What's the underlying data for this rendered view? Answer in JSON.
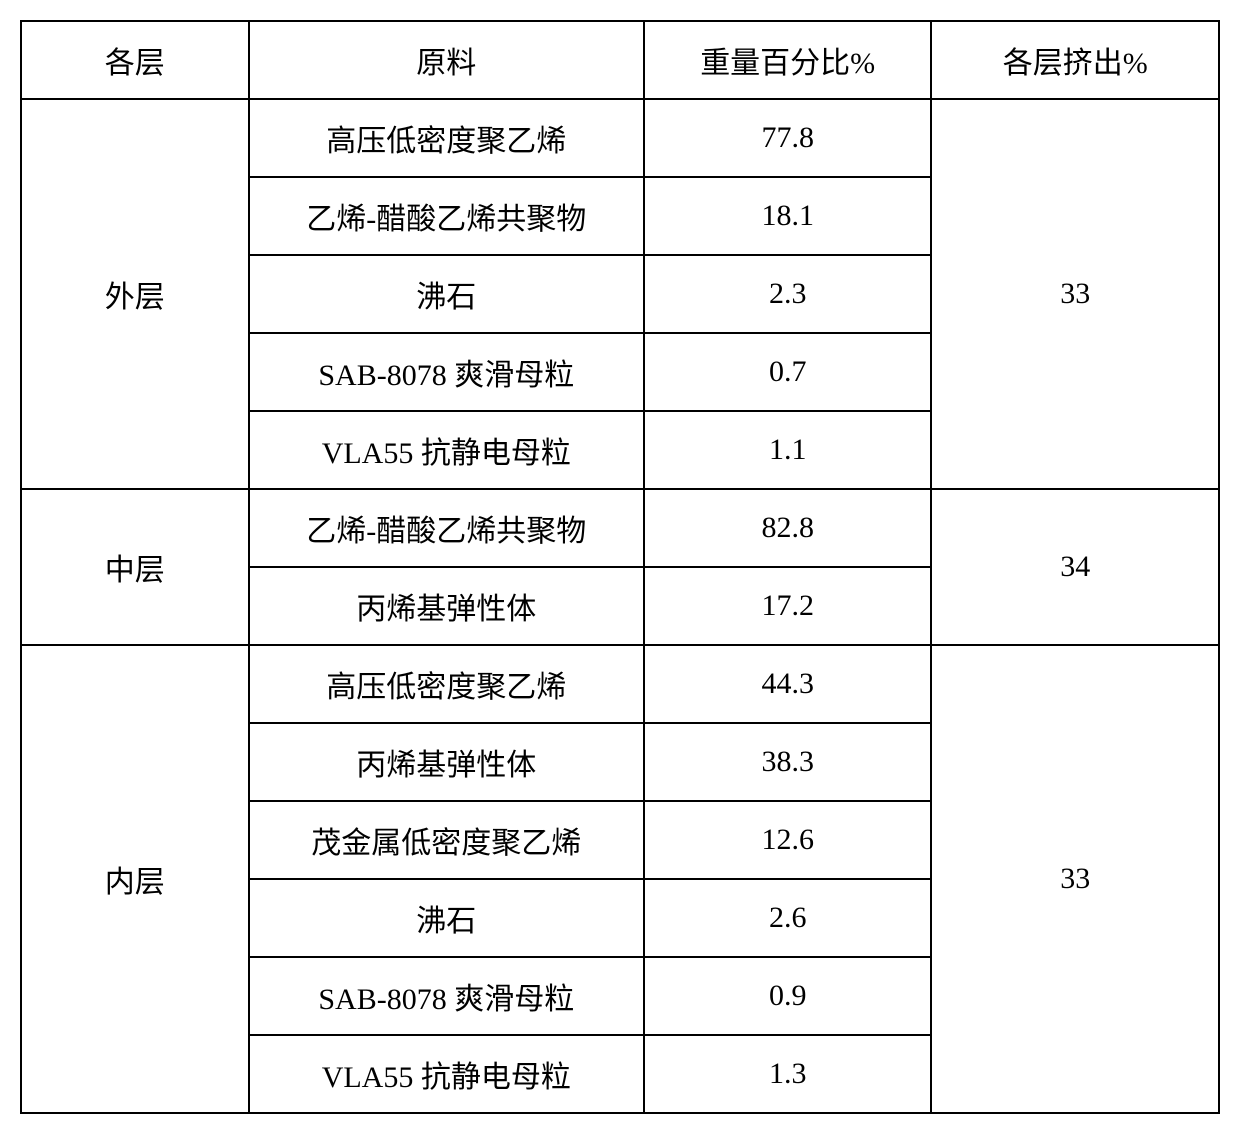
{
  "table": {
    "headers": {
      "layer": "各层",
      "material": "原料",
      "weight_pct": "重量百分比%",
      "extrude_pct": "各层挤出%"
    },
    "groups": [
      {
        "layer": "外层",
        "extrude": "33",
        "rows": [
          {
            "material": "高压低密度聚乙烯",
            "weight": "77.8"
          },
          {
            "material": "乙烯-醋酸乙烯共聚物",
            "weight": "18.1"
          },
          {
            "material": "沸石",
            "weight": "2.3"
          },
          {
            "material": "SAB-8078 爽滑母粒",
            "weight": "0.7"
          },
          {
            "material": "VLA55 抗静电母粒",
            "weight": "1.1"
          }
        ]
      },
      {
        "layer": "中层",
        "extrude": "34",
        "rows": [
          {
            "material": "乙烯-醋酸乙烯共聚物",
            "weight": "82.8"
          },
          {
            "material": "丙烯基弹性体",
            "weight": "17.2"
          }
        ]
      },
      {
        "layer": "内层",
        "extrude": "33",
        "rows": [
          {
            "material": "高压低密度聚乙烯",
            "weight": "44.3"
          },
          {
            "material": "丙烯基弹性体",
            "weight": "38.3"
          },
          {
            "material": "茂金属低密度聚乙烯",
            "weight": "12.6"
          },
          {
            "material": "沸石",
            "weight": "2.6"
          },
          {
            "material": "SAB-8078 爽滑母粒",
            "weight": "0.9"
          },
          {
            "material": "VLA55 抗静电母粒",
            "weight": "1.3"
          }
        ]
      }
    ],
    "border_color": "#000000",
    "background_color": "#ffffff",
    "text_color": "#000000",
    "font_size": 30
  }
}
